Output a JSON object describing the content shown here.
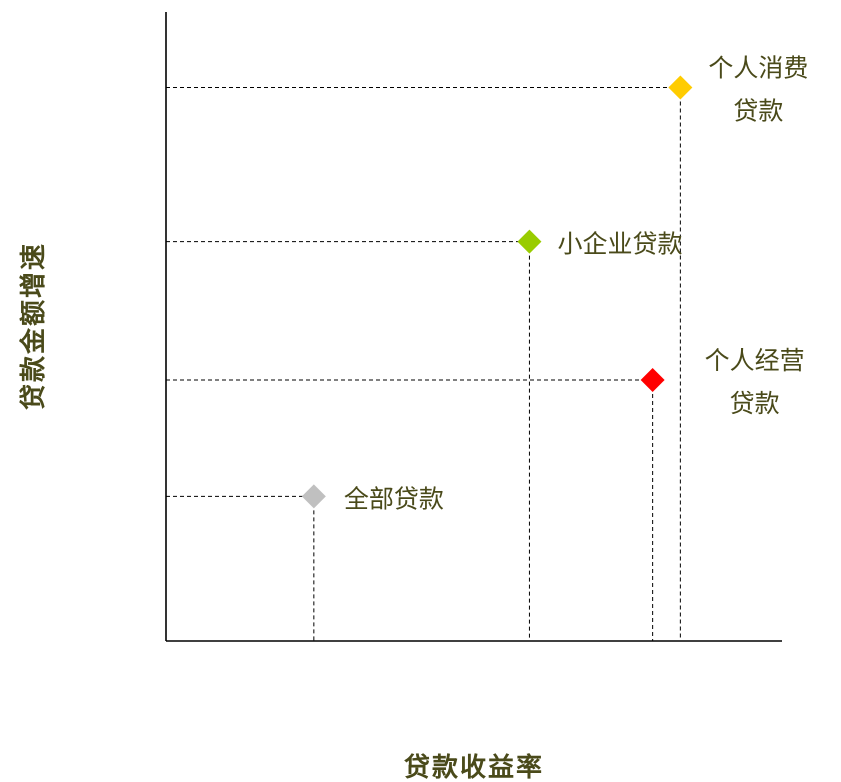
{
  "chart_data": {
    "type": "scatter",
    "title": "",
    "xlabel": "贷款收益率",
    "ylabel": "贷款金额增速",
    "xlim": [
      0,
      1
    ],
    "ylim": [
      0,
      1
    ],
    "grid": false,
    "legend": "none",
    "points": [
      {
        "label": "全部贷款",
        "x": 0.24,
        "y": 0.23,
        "color": "#C0C0C0"
      },
      {
        "label": "小企业贷款",
        "x": 0.59,
        "y": 0.635,
        "color": "#99CC00"
      },
      {
        "label": "个人经营贷款",
        "x": 0.79,
        "y": 0.415,
        "color": "#FF0000"
      },
      {
        "label": "个人消费贷款",
        "x": 0.835,
        "y": 0.88,
        "color": "#FFCC00"
      }
    ]
  }
}
